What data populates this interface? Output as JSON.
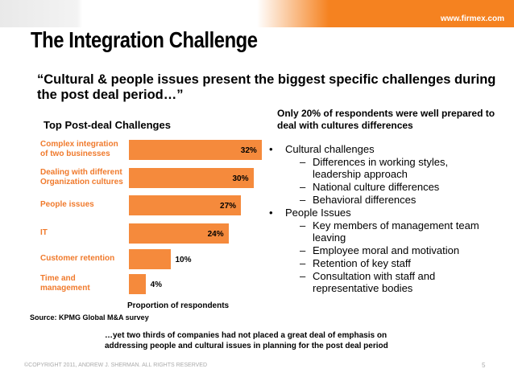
{
  "header": {
    "url": "www.firmex.com",
    "title": "The Integration Challenge",
    "quote": "“Cultural & people issues present the biggest specific challenges during the post deal period…”"
  },
  "chart_data": {
    "type": "bar",
    "orientation": "horizontal",
    "title": "Top Post-deal Challenges",
    "categories": [
      "Complex integration\nof two businesses",
      "Dealing with different\nOrganization cultures",
      "People issues",
      "IT",
      "Customer retention",
      "Time and\nmanagement"
    ],
    "values": [
      32,
      30,
      27,
      24,
      10,
      4
    ],
    "value_labels": [
      "32%",
      "30%",
      "27%",
      "24%",
      "10%",
      "4%"
    ],
    "color": "#f58a3c",
    "x_label": "Proportion of respondents"
  },
  "source": "Source:  KPMG Global M&A survey",
  "right_panel": {
    "heading": "Only 20% of respondents were well prepared to deal with cultures differences",
    "bullets": [
      {
        "text": "Cultural challenges",
        "items": [
          "Differences in working styles, leadership approach",
          "National culture differences",
          "Behavioral differences"
        ]
      },
      {
        "text": "People Issues",
        "items": [
          "Key members of management team leaving",
          "Employee moral and motivation",
          "Retention of key staff",
          "Consultation with staff and representative bodies"
        ]
      }
    ]
  },
  "note": "…yet two thirds of companies had not placed a great deal of emphasis on addressing people and cultural issues in planning for the post deal period",
  "footer": {
    "copyright": "©COPYRIGHT 2011,  ANDREW J. SHERMAN. ALL RIGHTS RESERVED",
    "page": "5"
  }
}
